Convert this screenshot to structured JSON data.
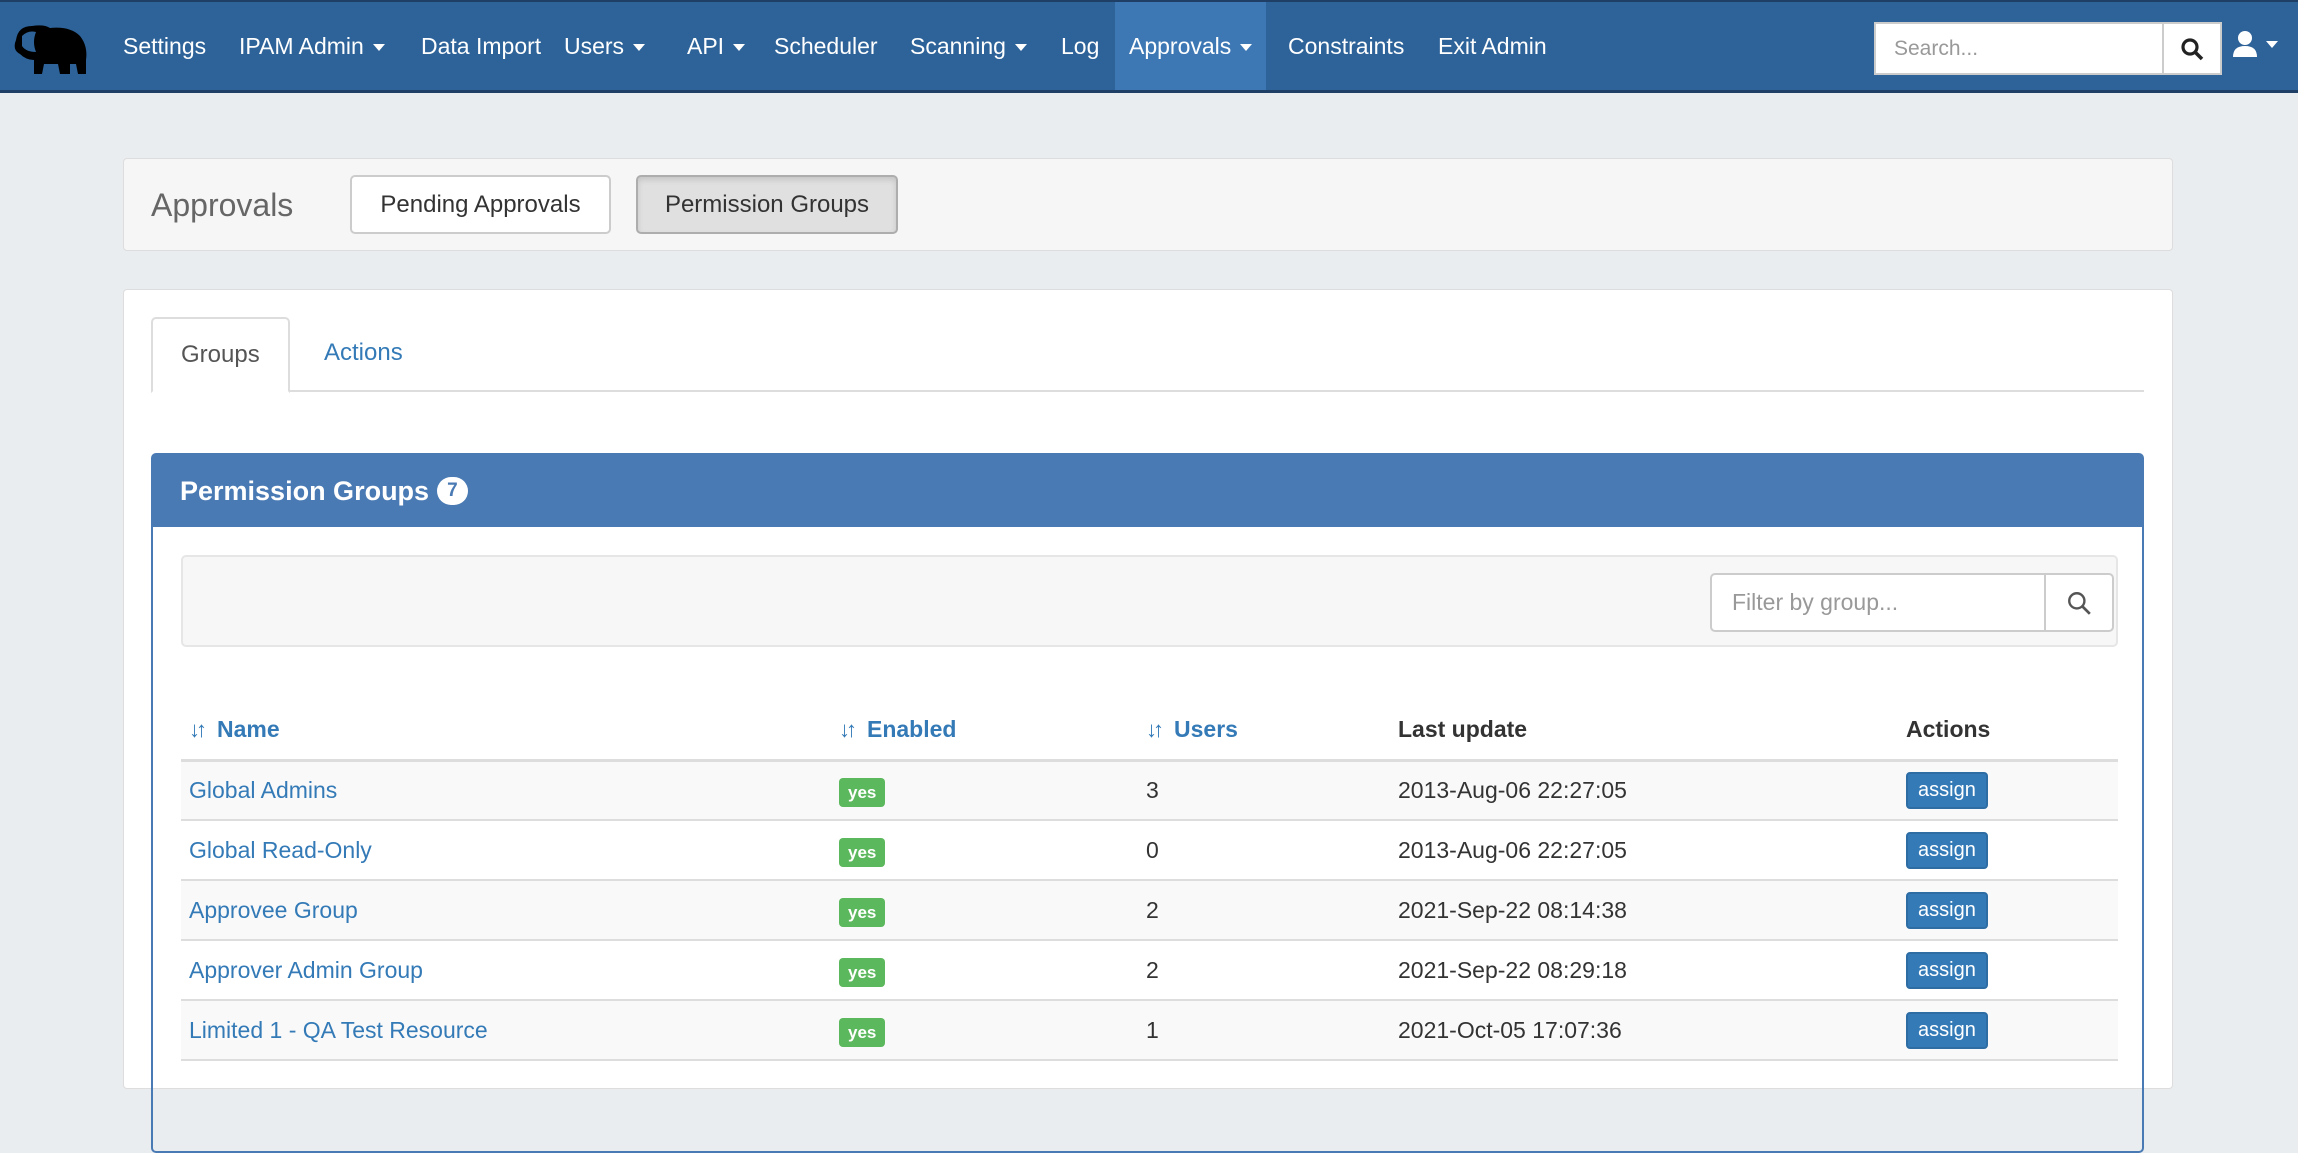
{
  "nav": {
    "items": [
      {
        "label": "Settings",
        "caret": false
      },
      {
        "label": "IPAM Admin",
        "caret": true
      },
      {
        "label": "Data Import",
        "caret": false
      },
      {
        "label": "Users",
        "caret": true
      },
      {
        "label": "API",
        "caret": true
      },
      {
        "label": "Scheduler",
        "caret": false
      },
      {
        "label": "Scanning",
        "caret": true
      },
      {
        "label": "Log",
        "caret": false
      },
      {
        "label": "Approvals",
        "caret": true,
        "active": true
      },
      {
        "label": "Constraints",
        "caret": false
      },
      {
        "label": "Exit Admin",
        "caret": false
      }
    ],
    "search_placeholder": "Search..."
  },
  "subnav": {
    "title": "Approvals",
    "pending_label": "Pending Approvals",
    "groups_label": "Permission Groups"
  },
  "tabs": {
    "groups": "Groups",
    "actions": "Actions"
  },
  "panel": {
    "title": "Permission Groups",
    "count": "7",
    "filter_placeholder": "Filter by group..."
  },
  "table": {
    "headers": {
      "name": "Name",
      "enabled": "Enabled",
      "users": "Users",
      "last_update": "Last update",
      "actions": "Actions"
    },
    "rows": [
      {
        "name": "Global Admins",
        "enabled": "yes",
        "users": "3",
        "last_update": "2013-Aug-06 22:27:05",
        "action": "assign"
      },
      {
        "name": "Global Read-Only",
        "enabled": "yes",
        "users": "0",
        "last_update": "2013-Aug-06 22:27:05",
        "action": "assign"
      },
      {
        "name": "Approvee Group",
        "enabled": "yes",
        "users": "2",
        "last_update": "2021-Sep-22 08:14:38",
        "action": "assign"
      },
      {
        "name": "Approver Admin Group",
        "enabled": "yes",
        "users": "2",
        "last_update": "2021-Sep-22 08:29:18",
        "action": "assign"
      },
      {
        "name": "Limited 1 - QA Test Resource",
        "enabled": "yes",
        "users": "1",
        "last_update": "2021-Oct-05 17:07:36",
        "action": "assign"
      }
    ]
  },
  "colors": {
    "navbar": "#2e6399",
    "active_nav": "#3d78b5",
    "panel_header": "#4a7ab4",
    "badge_yes": "#5cb85c",
    "button_primary": "#337ab7"
  }
}
